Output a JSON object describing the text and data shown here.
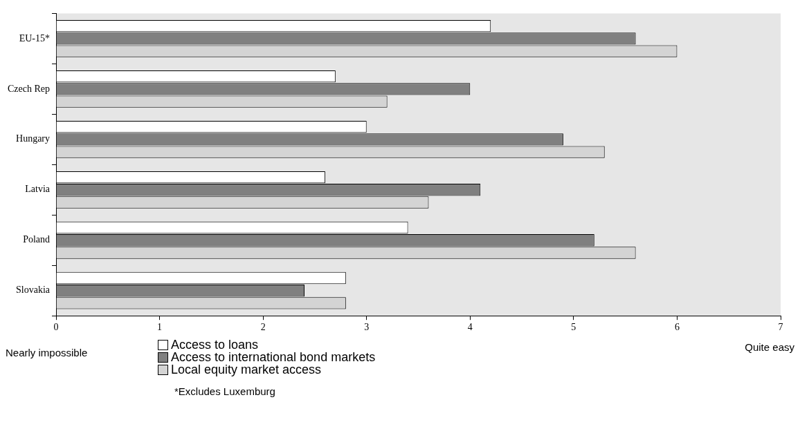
{
  "chart_data": {
    "type": "bar",
    "orientation": "horizontal",
    "categories": [
      "EU-15*",
      "Czech Rep",
      "Hungary",
      "Latvia",
      "Poland",
      "Slovakia"
    ],
    "series": [
      {
        "name": "Access to loans",
        "color": "#ffffff",
        "values": [
          4.2,
          2.7,
          3.0,
          2.6,
          3.4,
          2.8
        ]
      },
      {
        "name": "Access to international bond markets",
        "color": "#808080",
        "values": [
          5.6,
          4.0,
          4.9,
          4.1,
          5.2,
          2.4
        ]
      },
      {
        "name": "Local equity market access",
        "color": "#d4d4d4",
        "values": [
          6.0,
          3.2,
          5.3,
          3.6,
          5.6,
          2.8
        ]
      }
    ],
    "xlim": [
      0,
      7
    ],
    "xticks": [
      0,
      1,
      2,
      3,
      4,
      5,
      6,
      7
    ],
    "grid": false,
    "legend": "bottom",
    "annotations": [
      "Nearly impossible",
      "Quite easy",
      "*Excludes Luxemburg"
    ]
  }
}
